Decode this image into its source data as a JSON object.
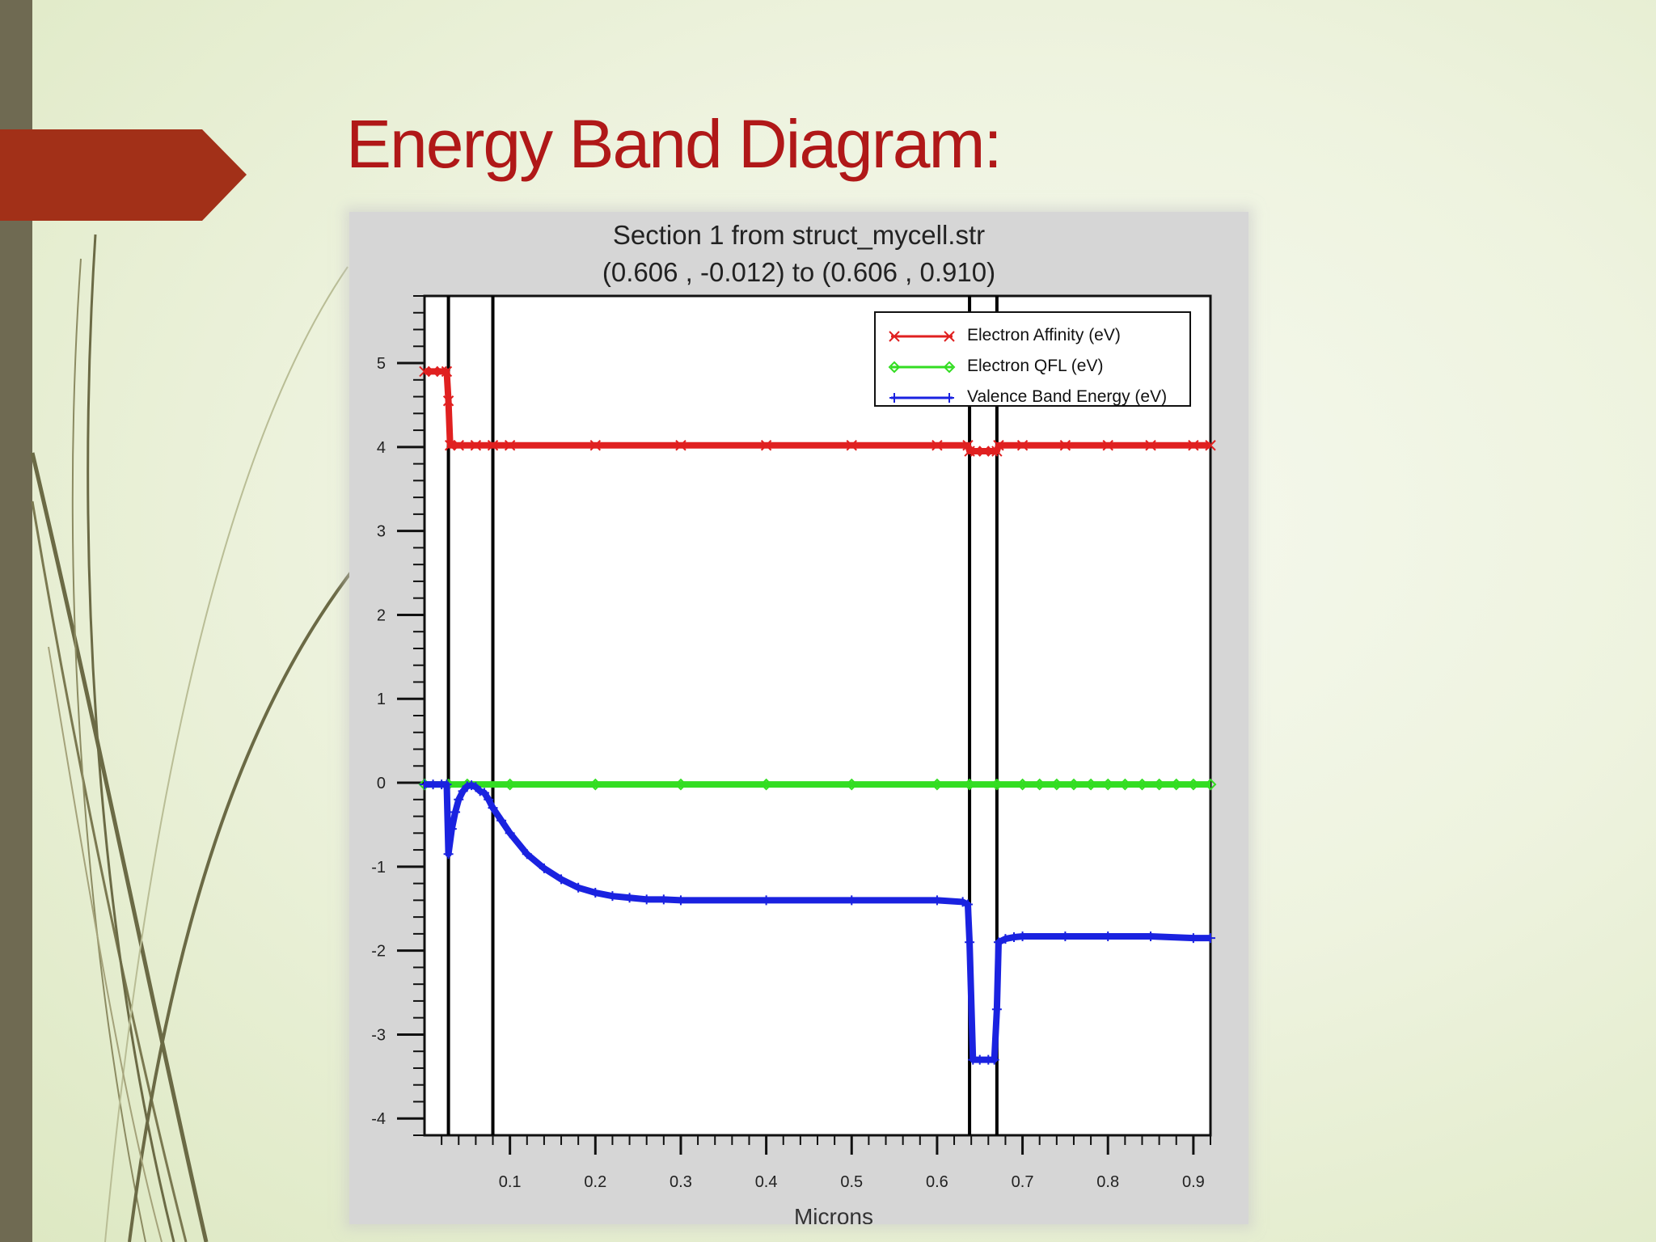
{
  "slide": {
    "title": "Energy Band Diagram:",
    "colors": {
      "title": "#b01818",
      "accent_tab": "#a23018",
      "left_bar": "#6f6a52",
      "swoosh": "#6b6a45"
    }
  },
  "chart_data": {
    "type": "line",
    "title": "Section 1 from struct_mycell.str",
    "subtitle": "(0.606 , -0.012) to (0.606 , 0.910)",
    "xlabel": "Microns",
    "ylabel": "",
    "xlim": [
      0.0,
      0.92
    ],
    "ylim": [
      -4.2,
      5.8
    ],
    "xticks": [
      0.1,
      0.2,
      0.3,
      0.4,
      0.5,
      0.6,
      0.7,
      0.8,
      0.9
    ],
    "xtick_labels": [
      "0.1",
      "0.2",
      "0.3",
      "0.4",
      "0.5",
      "0.6",
      "0.7",
      "0.8",
      "0.9"
    ],
    "yticks": [
      -4,
      -3,
      -2,
      -1,
      0,
      1,
      2,
      3,
      4,
      5
    ],
    "ytick_labels": [
      "-4",
      "-3",
      "-2",
      "-1",
      "0",
      "1",
      "2",
      "3",
      "4",
      "5"
    ],
    "region_boundaries_x": [
      0.028,
      0.08,
      0.638,
      0.67
    ],
    "grid": false,
    "legend_position": "top-right",
    "series": [
      {
        "name": "Electron Affinity (eV)",
        "color": "#e02020",
        "marker": "x",
        "x": [
          0.0,
          0.01,
          0.02,
          0.026,
          0.028,
          0.03,
          0.04,
          0.06,
          0.08,
          0.1,
          0.2,
          0.3,
          0.4,
          0.5,
          0.6,
          0.636,
          0.638,
          0.645,
          0.655,
          0.665,
          0.67,
          0.672,
          0.7,
          0.75,
          0.8,
          0.85,
          0.9,
          0.92
        ],
        "y": [
          4.9,
          4.9,
          4.9,
          4.9,
          4.55,
          4.02,
          4.02,
          4.02,
          4.02,
          4.02,
          4.02,
          4.02,
          4.02,
          4.02,
          4.02,
          4.02,
          3.95,
          3.95,
          3.95,
          3.95,
          3.95,
          4.02,
          4.02,
          4.02,
          4.02,
          4.02,
          4.02,
          4.02
        ]
      },
      {
        "name": "Electron QFL (eV)",
        "color": "#33dd22",
        "marker": "diamond",
        "x": [
          0.0,
          0.028,
          0.05,
          0.1,
          0.2,
          0.3,
          0.4,
          0.5,
          0.6,
          0.638,
          0.67,
          0.7,
          0.72,
          0.74,
          0.76,
          0.78,
          0.8,
          0.82,
          0.84,
          0.86,
          0.88,
          0.9,
          0.92
        ],
        "y": [
          -0.02,
          -0.02,
          -0.02,
          -0.02,
          -0.02,
          -0.02,
          -0.02,
          -0.02,
          -0.02,
          -0.02,
          -0.02,
          -0.02,
          -0.02,
          -0.02,
          -0.02,
          -0.02,
          -0.02,
          -0.02,
          -0.02,
          -0.02,
          -0.02,
          -0.02,
          -0.02
        ]
      },
      {
        "name": "Valence Band Energy (eV)",
        "color": "#1a22e0",
        "marker": "plus",
        "x": [
          0.0,
          0.01,
          0.02,
          0.026,
          0.028,
          0.032,
          0.036,
          0.04,
          0.045,
          0.05,
          0.055,
          0.06,
          0.065,
          0.07,
          0.075,
          0.08,
          0.09,
          0.1,
          0.12,
          0.14,
          0.16,
          0.18,
          0.2,
          0.22,
          0.24,
          0.26,
          0.28,
          0.3,
          0.4,
          0.5,
          0.6,
          0.63,
          0.636,
          0.638,
          0.642,
          0.65,
          0.66,
          0.667,
          0.67,
          0.672,
          0.68,
          0.69,
          0.7,
          0.75,
          0.8,
          0.85,
          0.9,
          0.92
        ],
        "y": [
          -0.02,
          -0.02,
          -0.02,
          -0.02,
          -0.85,
          -0.55,
          -0.35,
          -0.2,
          -0.1,
          -0.04,
          -0.03,
          -0.05,
          -0.1,
          -0.12,
          -0.2,
          -0.3,
          -0.45,
          -0.6,
          -0.85,
          -1.02,
          -1.15,
          -1.25,
          -1.31,
          -1.35,
          -1.37,
          -1.39,
          -1.39,
          -1.4,
          -1.4,
          -1.4,
          -1.4,
          -1.42,
          -1.45,
          -1.9,
          -3.3,
          -3.3,
          -3.3,
          -3.3,
          -2.7,
          -1.9,
          -1.86,
          -1.84,
          -1.83,
          -1.83,
          -1.83,
          -1.83,
          -1.85,
          -1.85
        ]
      }
    ]
  }
}
